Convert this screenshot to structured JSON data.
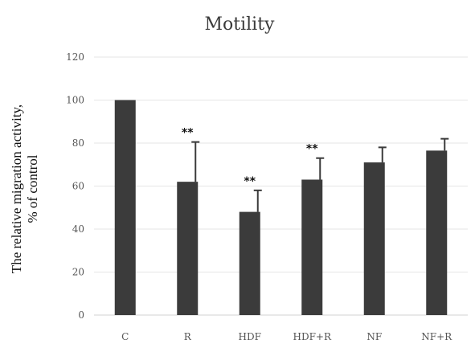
{
  "chart_data": {
    "type": "bar",
    "title": "Motility",
    "ylabel": "The relative migration activity, % of control",
    "xlabel": "",
    "ylim": [
      0,
      120
    ],
    "yticks": [
      0,
      20,
      40,
      60,
      80,
      100,
      120
    ],
    "categories": [
      "C",
      "R",
      "HDF",
      "HDF+R",
      "NF",
      "NF+R"
    ],
    "values": [
      100,
      62,
      48,
      63,
      71,
      76.5
    ],
    "error_plus": [
      0,
      18.5,
      10,
      10,
      7,
      5.5
    ],
    "annotations": [
      "",
      "**",
      "**",
      "**",
      "",
      ""
    ],
    "grid": true,
    "bar_color": "#3b3b3b"
  }
}
